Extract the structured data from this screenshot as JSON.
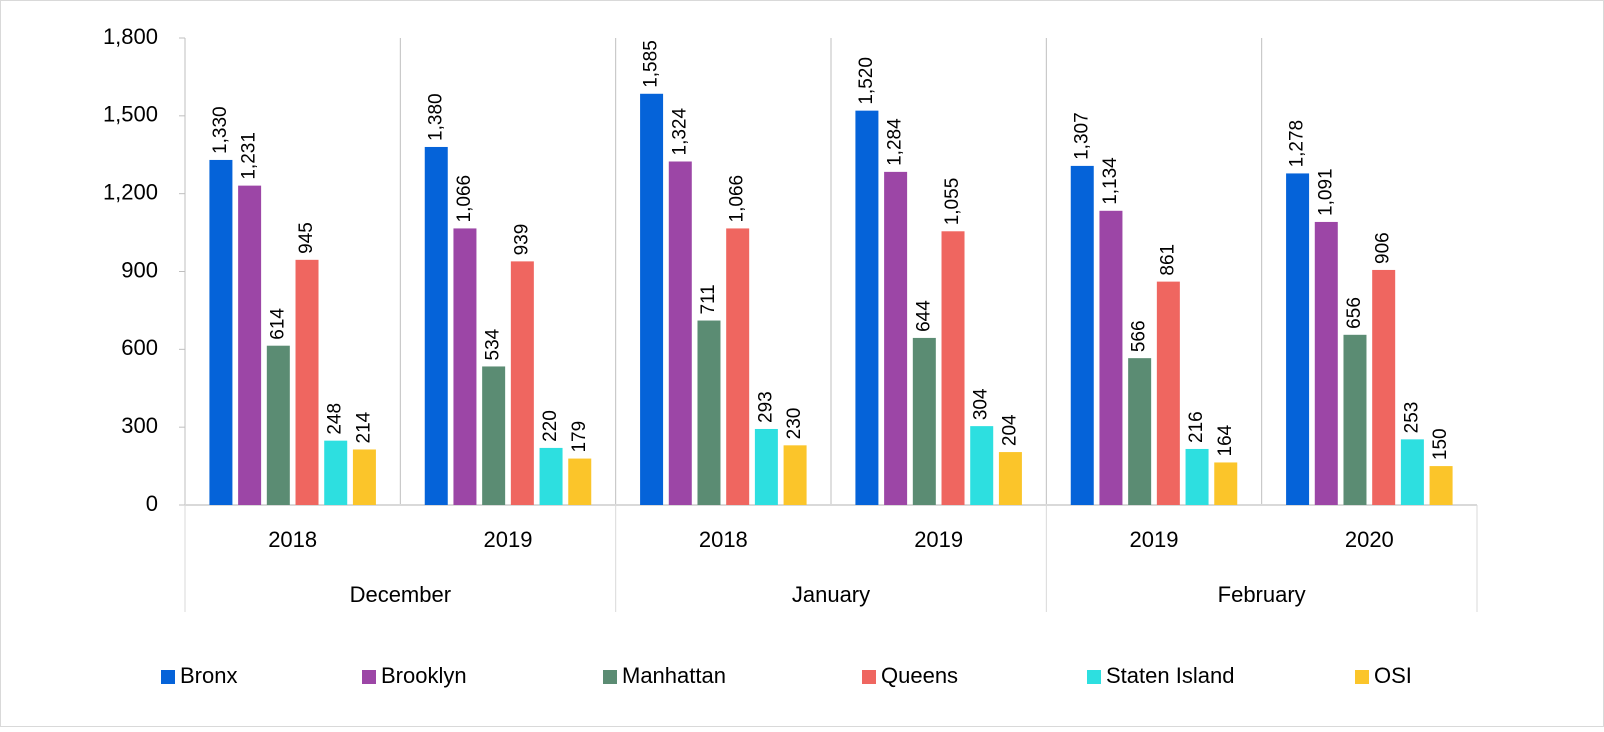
{
  "chart_data": {
    "type": "bar",
    "groups": [
      {
        "name": "December",
        "categories": [
          "2018",
          "2019"
        ]
      },
      {
        "name": "January",
        "categories": [
          "2018",
          "2019"
        ]
      },
      {
        "name": "February",
        "categories": [
          "2019",
          "2020"
        ]
      }
    ],
    "series": [
      {
        "name": "Bronx",
        "color": "#0563d9",
        "values": [
          1330,
          1380,
          1585,
          1520,
          1307,
          1278
        ],
        "value_labels": [
          "1,330",
          "1,380",
          "1,585",
          "1,520",
          "1,307",
          "1,278"
        ]
      },
      {
        "name": "Brooklyn",
        "color": "#9c46a6",
        "values": [
          1231,
          1066,
          1324,
          1284,
          1134,
          1091
        ],
        "value_labels": [
          "1,231",
          "1,066",
          "1,324",
          "1,284",
          "1,134",
          "1,091"
        ]
      },
      {
        "name": "Manhattan",
        "color": "#5b8c73",
        "values": [
          614,
          534,
          711,
          644,
          566,
          656
        ]
      },
      {
        "name": "Queens",
        "color": "#ef6660",
        "values": [
          945,
          939,
          1066,
          1055,
          861,
          906
        ],
        "value_labels": [
          "945",
          "939",
          "1,066",
          "1,055",
          "861",
          "906"
        ]
      },
      {
        "name": "Staten Island",
        "color": "#2ddfe0",
        "values": [
          248,
          220,
          293,
          304,
          216,
          253
        ]
      },
      {
        "name": "OSI",
        "color": "#fbc52a",
        "values": [
          214,
          179,
          230,
          204,
          164,
          150
        ]
      }
    ],
    "ylim": [
      0,
      1800
    ],
    "yticks": [
      0,
      300,
      600,
      900,
      {
        "value": 1200,
        "label": "1,200"
      },
      {
        "value": 1500,
        "label": "1,500"
      },
      {
        "value": 1800,
        "label": "1,800"
      }
    ],
    "grid": false,
    "legend": "bottom"
  }
}
